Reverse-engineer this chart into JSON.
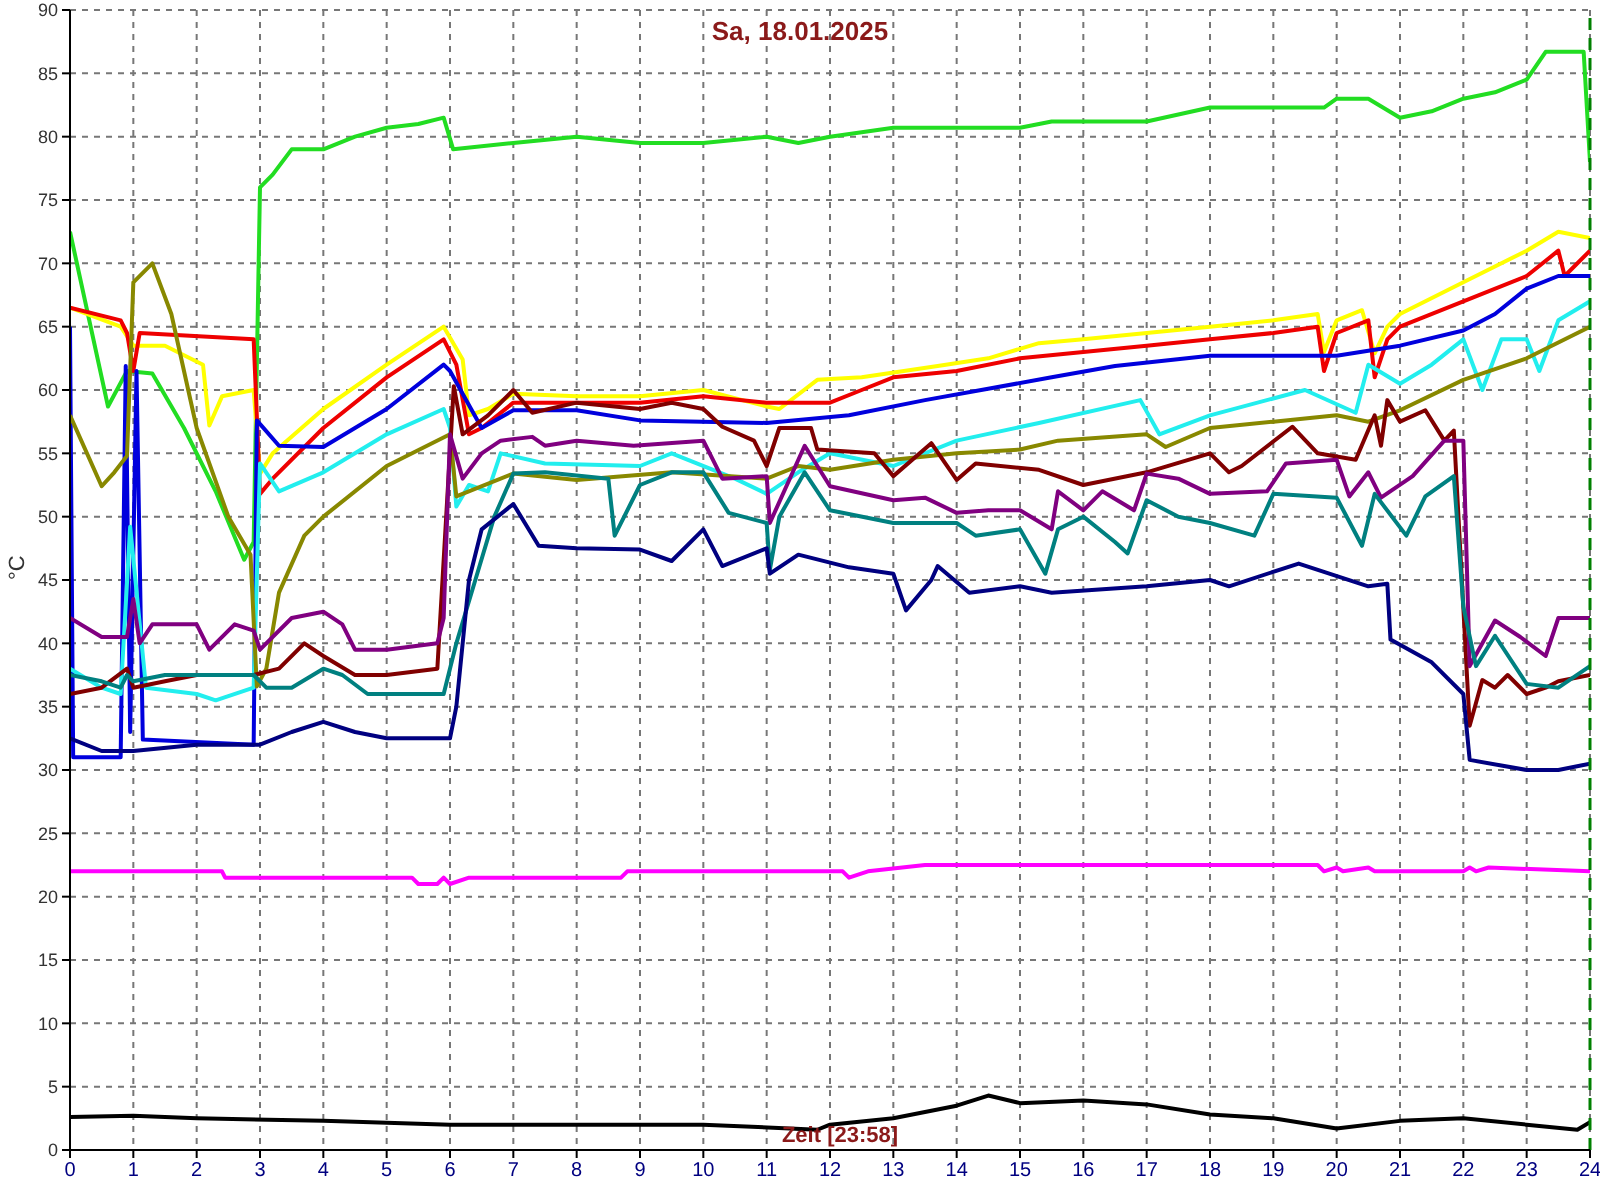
{
  "chart_data": {
    "type": "line",
    "title": "Sa, 18.01.2025",
    "xlabel": "Zeit [23:58]",
    "ylabel": "°C",
    "xlim": [
      0,
      24
    ],
    "xticks": [
      0,
      1,
      2,
      3,
      4,
      5,
      6,
      7,
      8,
      9,
      10,
      11,
      12,
      13,
      14,
      15,
      16,
      17,
      18,
      19,
      20,
      21,
      22,
      23,
      24
    ],
    "ylim": [
      0,
      90
    ],
    "yticks": [
      0,
      5,
      10,
      15,
      20,
      25,
      30,
      35,
      40,
      45,
      50,
      55,
      60,
      65,
      70,
      75,
      80,
      85,
      90
    ],
    "grid": true,
    "line_style": "solid",
    "ref_lines": [
      {
        "axis": "x",
        "value": 24,
        "color": "#008000",
        "line_style": "dashed"
      }
    ],
    "series": [
      {
        "color": "#22dd22",
        "x": [
          0,
          0.6,
          0.9,
          1.3,
          1.8,
          2.3,
          2.75,
          2.9,
          3.0,
          3.2,
          3.5,
          4,
          4.5,
          5,
          5.5,
          5.9,
          6.05,
          7,
          8,
          9,
          10,
          11,
          11.5,
          12,
          13,
          14,
          15,
          15.5,
          16,
          17,
          18,
          19,
          19.8,
          20,
          20.5,
          21,
          21.5,
          22,
          22.5,
          23,
          23.3,
          23.9,
          24
        ],
        "values": [
          72.5,
          58.7,
          61.5,
          61.3,
          57,
          52,
          46.6,
          48,
          76,
          77,
          79,
          79,
          80,
          80.7,
          81,
          81.5,
          79,
          79.5,
          80,
          79.5,
          79.5,
          80,
          79.5,
          80,
          80.7,
          80.7,
          80.7,
          81.2,
          81.2,
          81.2,
          82.3,
          82.3,
          82.3,
          83,
          83,
          81.5,
          82,
          83,
          83.5,
          84.5,
          86.7,
          86.7,
          78
        ]
      },
      {
        "color": "#ffff00",
        "x": [
          0,
          0.8,
          1.0,
          1.5,
          2.1,
          2.2,
          2.4,
          2.9,
          3.0,
          3.2,
          4,
          5,
          5.9,
          6.2,
          6.3,
          6.6,
          7,
          8,
          9,
          10,
          11,
          11.2,
          11.8,
          12.5,
          13.7,
          14.5,
          15.3,
          16,
          17,
          18,
          19,
          19.7,
          19.8,
          20,
          20.4,
          20.6,
          20.8,
          21,
          22,
          23,
          23.5,
          24
        ],
        "values": [
          66.5,
          65,
          63.5,
          63.5,
          62,
          57.2,
          59.5,
          60,
          53.4,
          55,
          58.5,
          62,
          65,
          62.4,
          58,
          58.5,
          59.7,
          59.5,
          59.5,
          60,
          58.7,
          58.5,
          60.8,
          61,
          61.9,
          62.5,
          63.7,
          64,
          64.5,
          65,
          65.5,
          66,
          63,
          65.5,
          66.3,
          62.9,
          65,
          66,
          68.5,
          71,
          72.5,
          72
        ]
      },
      {
        "color": "#ee0000",
        "x": [
          0,
          0.8,
          0.9,
          1.0,
          1.1,
          2.9,
          3.0,
          3.2,
          4,
          5,
          5.9,
          6.1,
          6.3,
          6.5,
          7,
          8,
          9,
          10,
          11,
          12,
          12.5,
          13,
          14,
          15,
          16,
          17,
          18,
          19,
          19.7,
          19.8,
          20,
          20.5,
          20.6,
          20.8,
          21,
          22,
          23,
          23.5,
          23.6,
          24
        ],
        "values": [
          66.5,
          65.5,
          64.5,
          61.5,
          64.5,
          64,
          51.8,
          53,
          57,
          61,
          64,
          62,
          56.5,
          57,
          59,
          59,
          59,
          59.5,
          59,
          59,
          60,
          61,
          61.5,
          62.5,
          63,
          63.5,
          64,
          64.5,
          65,
          61.5,
          64.5,
          65.5,
          61,
          64,
          65,
          67,
          69,
          71,
          69,
          71
        ]
      },
      {
        "color": "#0000dd",
        "x": [
          0,
          0.05,
          0.8,
          0.88,
          0.95,
          1.05,
          1.15,
          2.9,
          2.95,
          3.3,
          4,
          5,
          5.9,
          6.0,
          6.5,
          7,
          8,
          9,
          11,
          12.3,
          13.5,
          15.5,
          16.5,
          18,
          20,
          21,
          22,
          22.5,
          23,
          23.5,
          24
        ],
        "values": [
          65,
          31,
          31,
          61.9,
          33,
          61.5,
          32.4,
          32,
          57.6,
          55.6,
          55.5,
          58.5,
          62,
          61.5,
          57,
          58.4,
          58.4,
          57.6,
          57.4,
          58,
          59.2,
          61,
          61.9,
          62.7,
          62.7,
          63.5,
          64.7,
          66,
          68,
          69,
          69
        ]
      },
      {
        "color": "#22eeee",
        "x": [
          0,
          0.5,
          0.8,
          0.95,
          1.2,
          2,
          2.3,
          2.9,
          3.0,
          3.3,
          4,
          5,
          5.9,
          6.0,
          6.1,
          6.3,
          6.6,
          6.8,
          7.5,
          9,
          9.5,
          10.5,
          11.0,
          11.5,
          12,
          13,
          14,
          15.3,
          16.9,
          17.2,
          18,
          19.5,
          20.3,
          20.5,
          21,
          21.5,
          22,
          22.3,
          22.6,
          23,
          23.2,
          23.5,
          24
        ],
        "values": [
          38,
          36.5,
          36,
          49.2,
          36.5,
          36,
          35.5,
          36.5,
          54.2,
          52,
          53.5,
          56.5,
          58.5,
          57,
          50.8,
          52.5,
          52,
          55,
          54.2,
          54,
          55,
          53,
          51.8,
          53.5,
          55,
          54,
          56,
          57.4,
          59.2,
          56.5,
          58,
          60,
          58.2,
          62,
          60.5,
          62,
          64,
          60,
          64,
          64,
          61.5,
          65.5,
          67
        ]
      },
      {
        "color": "#888800",
        "x": [
          0,
          0.5,
          0.7,
          0.9,
          1.0,
          1.3,
          1.6,
          2,
          2.5,
          2.85,
          2.95,
          3.1,
          3.3,
          3.7,
          4,
          5,
          6,
          6.1,
          7,
          8,
          9.5,
          11,
          11.5,
          12,
          13,
          14,
          15,
          15.6,
          17,
          17.3,
          18,
          19,
          20,
          20.5,
          21,
          22,
          23,
          24
        ],
        "values": [
          58,
          52.4,
          53.5,
          54.8,
          68.5,
          70,
          66,
          57,
          50,
          47,
          36.6,
          38,
          44,
          48.5,
          50,
          54,
          56.5,
          51.6,
          53.4,
          52.9,
          53.5,
          53,
          54,
          53.7,
          54.5,
          55,
          55.3,
          56,
          56.5,
          55.5,
          57,
          57.5,
          58,
          57.5,
          58.4,
          60.8,
          62.5,
          65
        ]
      },
      {
        "color": "#800000",
        "x": [
          0,
          0.5,
          0.9,
          1.0,
          1.5,
          2,
          2.9,
          3.3,
          3.7,
          4,
          4.5,
          5,
          5.8,
          6.06,
          6.2,
          6.6,
          7.0,
          7.3,
          8,
          9,
          9.5,
          10,
          10.3,
          10.8,
          11.0,
          11.2,
          11.7,
          11.8,
          12.7,
          13.0,
          13.6,
          14.0,
          14.3,
          15.3,
          16,
          17,
          18,
          18.3,
          18.5,
          19.3,
          19.7,
          20.3,
          20.6,
          20.7,
          20.8,
          21,
          21.4,
          21.7,
          21.85,
          22.1,
          22.3,
          22.5,
          22.7,
          23,
          23.3,
          23.5,
          24
        ],
        "values": [
          36,
          36.5,
          38,
          36.5,
          37,
          37.5,
          37.5,
          38,
          40,
          39,
          37.5,
          37.5,
          38,
          60.3,
          56.5,
          58,
          60,
          58.2,
          59,
          58.5,
          59,
          58.5,
          57.1,
          56,
          54,
          57,
          57,
          55.3,
          55,
          53.2,
          55.8,
          52.9,
          54.2,
          53.7,
          52.5,
          53.5,
          55,
          53.5,
          54,
          57.1,
          55,
          54.5,
          58,
          55.6,
          59.2,
          57.5,
          58.4,
          56,
          56.8,
          33.5,
          37.1,
          36.5,
          37.5,
          36,
          36.5,
          37,
          37.5
        ]
      },
      {
        "color": "#800080",
        "x": [
          0,
          0.5,
          0.9,
          1.0,
          1.1,
          1.3,
          2,
          2.2,
          2.6,
          2.9,
          3.0,
          3.5,
          4,
          4.3,
          4.5,
          5,
          5.8,
          5.9,
          6.0,
          6.2,
          6.5,
          6.8,
          7.3,
          7.5,
          8,
          8.9,
          10,
          10.3,
          11,
          11.05,
          11.6,
          12,
          13,
          13.5,
          14,
          14.5,
          15,
          15.5,
          15.6,
          16,
          16.3,
          16.8,
          17.0,
          17.5,
          18,
          18.9,
          19.2,
          20,
          20.2,
          20.5,
          20.7,
          21.2,
          21.7,
          22,
          22.1,
          22.3,
          22.5,
          22.9,
          23.3,
          23.5,
          24
        ],
        "values": [
          42,
          40.5,
          40.5,
          43.5,
          40,
          41.5,
          41.5,
          39.5,
          41.5,
          41,
          39.5,
          42,
          42.5,
          41.5,
          39.5,
          39.5,
          40,
          42,
          56.5,
          53,
          55,
          56,
          56.3,
          55.6,
          56,
          55.6,
          56,
          53,
          53.2,
          49.5,
          55.6,
          52.4,
          51.3,
          51.5,
          50.3,
          50.5,
          50.5,
          49,
          52,
          50.5,
          52,
          50.5,
          53.4,
          53,
          51.8,
          52,
          54.2,
          54.5,
          51.6,
          53.5,
          51.5,
          53.2,
          56,
          56,
          38.2,
          40,
          41.8,
          40.5,
          39,
          42,
          42
        ]
      },
      {
        "color": "#008080",
        "x": [
          0,
          0.5,
          0.8,
          0.9,
          1,
          1.5,
          2.9,
          3.1,
          3.5,
          4,
          4.3,
          4.7,
          5.9,
          6.1,
          6.4,
          6.7,
          7.0,
          7.5,
          8.5,
          8.6,
          9,
          9.5,
          10,
          10.4,
          11,
          11.05,
          11.2,
          11.6,
          12,
          13,
          14,
          14.3,
          15,
          15.4,
          15.6,
          16,
          16.5,
          16.7,
          17.0,
          17.5,
          18,
          18.7,
          19.0,
          20,
          20.4,
          20.6,
          21.1,
          21.4,
          21.85,
          22.0,
          22.2,
          22.5,
          23,
          23.5,
          24
        ],
        "values": [
          37.5,
          37,
          36.5,
          37.5,
          37,
          37.5,
          37.5,
          36.5,
          36.5,
          38,
          37.5,
          36,
          36,
          40,
          45,
          50,
          53.4,
          53.5,
          53,
          48.5,
          52.5,
          53.5,
          53.5,
          50.3,
          49.5,
          45.8,
          50,
          53.5,
          50.5,
          49.5,
          49.5,
          48.5,
          49,
          45.5,
          49,
          50,
          48,
          47.1,
          51.3,
          50,
          49.5,
          48.5,
          51.8,
          51.5,
          47.7,
          51.8,
          48.5,
          51.6,
          53.2,
          42.9,
          38.2,
          40.6,
          36.8,
          36.5,
          38.2
        ]
      },
      {
        "color": "#000080",
        "x": [
          0,
          0.5,
          1,
          2,
          3,
          3.5,
          4,
          4.5,
          5,
          6,
          6.1,
          6.3,
          6.5,
          7,
          7.4,
          8,
          9,
          9.5,
          10,
          10.3,
          11,
          11.05,
          11.5,
          12.3,
          13,
          13.2,
          13.6,
          13.7,
          14.2,
          15,
          15.5,
          17,
          18,
          18.3,
          19.4,
          20.5,
          20.8,
          20.85,
          21.5,
          22,
          22.1,
          23,
          23.5,
          24
        ],
        "values": [
          32.5,
          31.5,
          31.5,
          32,
          32,
          33,
          33.8,
          33,
          32.5,
          32.5,
          35,
          45,
          49,
          51,
          47.7,
          47.5,
          47.4,
          46.5,
          49,
          46.1,
          47.5,
          45.5,
          47,
          46,
          45.5,
          42.6,
          45,
          46.1,
          44,
          44.5,
          44,
          44.5,
          45,
          44.5,
          46.3,
          44.5,
          44.7,
          40.3,
          38.5,
          36,
          30.8,
          30,
          30,
          30.5
        ]
      },
      {
        "color": "#ff00ff",
        "x": [
          0,
          2.4,
          2.45,
          5.4,
          5.5,
          5.8,
          5.9,
          6.0,
          6.3,
          8.7,
          8.8,
          12.2,
          12.3,
          12.6,
          13.5,
          19.7,
          19.8,
          20,
          20.1,
          20.5,
          20.6,
          22,
          22.1,
          22.2,
          22.4,
          24
        ],
        "values": [
          22,
          22,
          21.5,
          21.5,
          21,
          21,
          21.5,
          21,
          21.5,
          21.5,
          22,
          22,
          21.5,
          22,
          22.5,
          22.5,
          22,
          22.3,
          22,
          22.3,
          22,
          22,
          22.3,
          22,
          22.3,
          22
        ]
      },
      {
        "color": "#000000",
        "x": [
          0,
          1,
          2,
          4,
          6,
          8,
          10,
          11.8,
          12,
          13,
          14,
          14.5,
          15,
          16,
          17,
          18,
          19,
          20,
          21,
          22,
          23,
          23.8,
          24
        ],
        "values": [
          2.6,
          2.7,
          2.5,
          2.3,
          2.0,
          2.0,
          2.0,
          1.6,
          2.0,
          2.5,
          3.5,
          4.3,
          3.7,
          3.9,
          3.6,
          2.8,
          2.5,
          1.7,
          2.3,
          2.5,
          2.0,
          1.6,
          2.2
        ]
      }
    ]
  }
}
